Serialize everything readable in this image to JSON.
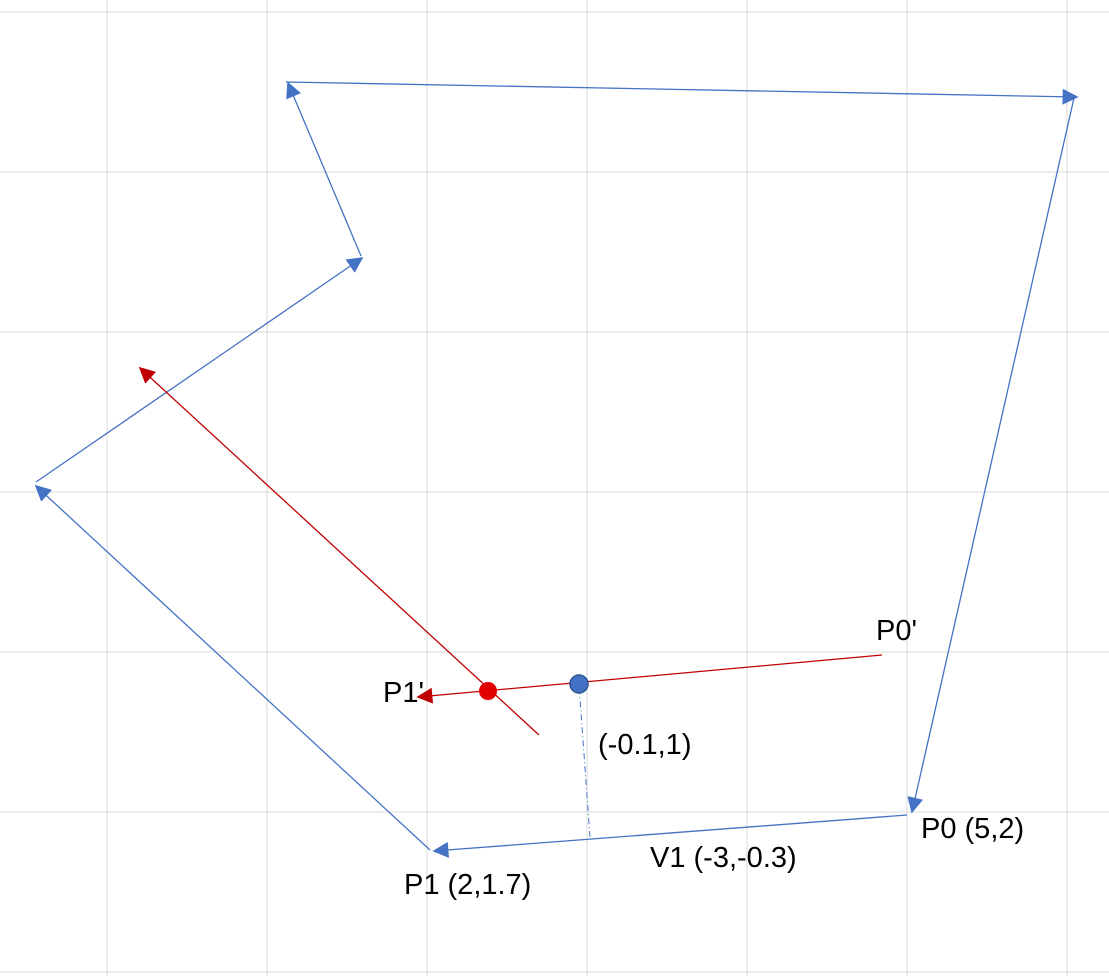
{
  "diagram": {
    "colors": {
      "grid": "#d9d9d9",
      "polygon": "#4472c4",
      "offset": "#c00000",
      "projection_point": "#4472c4",
      "intersection_point": "#e00000"
    },
    "labels": {
      "p0": "P0 (5,2)",
      "p1": "P1 (2,1.7)",
      "v1": "V1 (-3,-0.3)",
      "normal": "(-0.1,1)",
      "p0_prime": "P0'",
      "p1_prime": "P1'"
    }
  }
}
